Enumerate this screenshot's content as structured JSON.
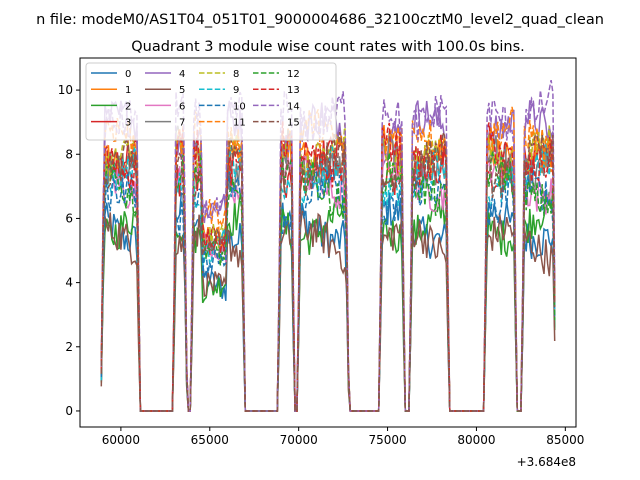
{
  "chart_data": {
    "type": "line",
    "suptitle": "n file: modeM0/AS1T04_051T01_9000004686_32100cztM0_level2_quad_clean",
    "title": "Quadrant 3 module wise count rates with 100.0s bins.",
    "xlabel": "",
    "ylabel": "",
    "x_offset_label": "+3.684e8",
    "xlim": [
      57700,
      85600
    ],
    "ylim": [
      -0.5,
      11.0
    ],
    "xticks": [
      60000,
      65000,
      70000,
      75000,
      80000,
      85000
    ],
    "xtick_labels": [
      "60000",
      "65000",
      "70000",
      "75000",
      "80000",
      "85000"
    ],
    "yticks": [
      0,
      2,
      4,
      6,
      8,
      10
    ],
    "ytick_labels": [
      "0",
      "2",
      "4",
      "6",
      "8",
      "10"
    ],
    "grid": false,
    "legend_position": "upper-left",
    "legend_columns": 4,
    "segments": [
      {
        "start": 58900,
        "end": 61050
      },
      {
        "start": 62950,
        "end": 63700
      },
      {
        "start": 63950,
        "end": 66950
      },
      {
        "start": 68850,
        "end": 69750
      },
      {
        "start": 69950,
        "end": 72800
      },
      {
        "start": 74550,
        "end": 75950
      },
      {
        "start": 76250,
        "end": 78450
      },
      {
        "start": 80450,
        "end": 82250
      },
      {
        "start": 82550,
        "end": 84450
      }
    ],
    "series": [
      {
        "name": "0",
        "level": 5.8,
        "color": "#1f77b4",
        "dash": "solid"
      },
      {
        "name": "1",
        "level": 8.1,
        "color": "#ff7f0e",
        "dash": "solid"
      },
      {
        "name": "2",
        "level": 5.9,
        "color": "#2ca02c",
        "dash": "solid"
      },
      {
        "name": "3",
        "level": 7.6,
        "color": "#d62728",
        "dash": "solid"
      },
      {
        "name": "4",
        "level": 8.7,
        "color": "#9467bd",
        "dash": "solid"
      },
      {
        "name": "5",
        "level": 5.2,
        "color": "#8c564b",
        "dash": "solid"
      },
      {
        "name": "6",
        "level": 7.2,
        "color": "#e377c2",
        "dash": "solid"
      },
      {
        "name": "7",
        "level": 7.9,
        "color": "#7f7f7f",
        "dash": "solid"
      },
      {
        "name": "8",
        "level": 8.2,
        "color": "#bcbd22",
        "dash": "dashed"
      },
      {
        "name": "9",
        "level": 7.3,
        "color": "#17becf",
        "dash": "dashed"
      },
      {
        "name": "10",
        "level": 6.5,
        "color": "#1f77b4",
        "dash": "dashed"
      },
      {
        "name": "11",
        "level": 8.4,
        "color": "#ff7f0e",
        "dash": "dashed"
      },
      {
        "name": "12",
        "level": 7.0,
        "color": "#2ca02c",
        "dash": "dashed"
      },
      {
        "name": "13",
        "level": 8.0,
        "color": "#d62728",
        "dash": "dashed"
      },
      {
        "name": "14",
        "level": 9.4,
        "color": "#9467bd",
        "dash": "dashed"
      },
      {
        "name": "15",
        "level": 7.7,
        "color": "#8c564b",
        "dash": "dashed"
      }
    ]
  }
}
